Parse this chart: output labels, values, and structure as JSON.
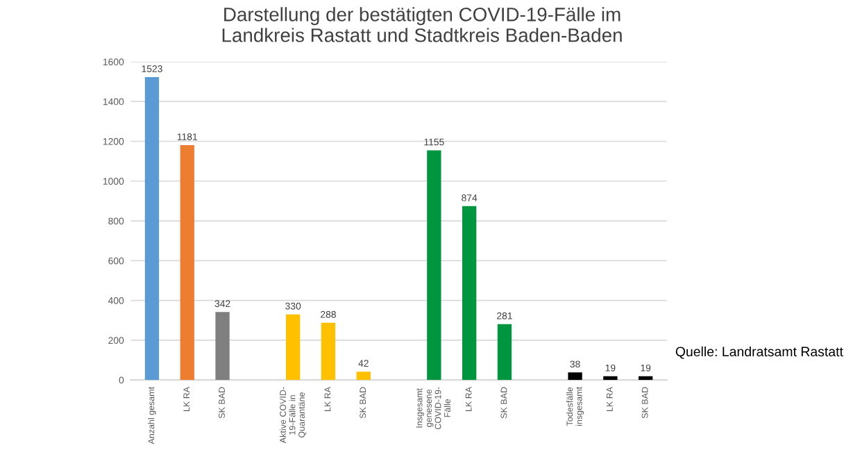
{
  "chart_data": {
    "type": "bar",
    "title": "Darstellung der bestätigten COVID-19-Fälle im\nLandkreis Rastatt und Stadtkreis Baden-Baden",
    "categories": [
      "Anzahl gesamt",
      "LK RA",
      "SK BAD",
      null,
      "Aktive COVID-\n19-Fälle in\nQuarantäne",
      "LK RA",
      "SK BAD",
      null,
      "Insgesamt\ngenesene\nCOVID-19-\nFälle",
      "LK RA",
      "SK BAD",
      null,
      "Todesfälle\ninsgesamt",
      "LK RA",
      "SK BAD"
    ],
    "values": [
      1523,
      1181,
      342,
      null,
      330,
      288,
      42,
      null,
      1155,
      874,
      281,
      null,
      38,
      19,
      19
    ],
    "colors": [
      "#5b9bd5",
      "#ed7d31",
      "#7f7f7f",
      "#ffffff",
      "#ffc000",
      "#ffc000",
      "#ffc000",
      "#ffffff",
      "#00963f",
      "#00963f",
      "#00963f",
      "#ffffff",
      "#000000",
      "#000000",
      "#000000"
    ],
    "ylim": [
      0,
      1600
    ],
    "yticks": [
      0,
      200,
      400,
      600,
      800,
      1000,
      1200,
      1400,
      1600
    ],
    "grid": "y",
    "data_labels": true,
    "annotations": [
      "Quelle: Landratsamt Rastatt"
    ]
  }
}
